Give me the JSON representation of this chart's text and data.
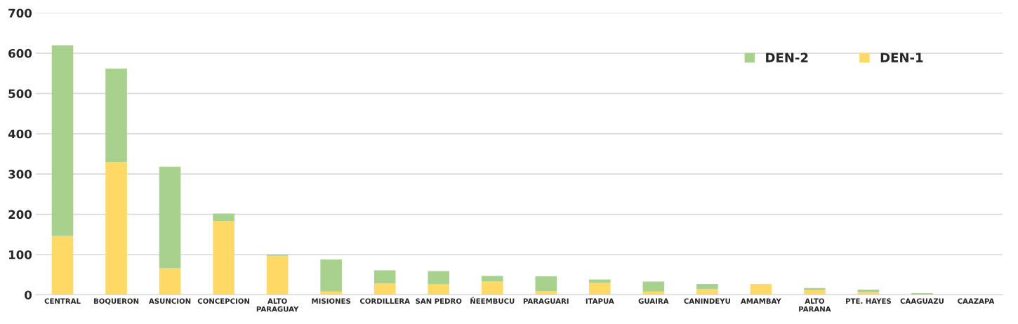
{
  "chart_data": {
    "type": "bar",
    "stacked": true,
    "categories": [
      "CENTRAL",
      "BOQUERON",
      "ASUNCION",
      "CONCEPCION",
      "ALTO\nPARAGUAY",
      "MISIONES",
      "CORDILLERA",
      "SAN PEDRO",
      "ÑEEMBUCU",
      "PARAGUARI",
      "ITAPUA",
      "GUAIRA",
      "CANINDEYU",
      "AMAMBAY",
      "ALTO\nPARANA",
      "PTE. HAYES",
      "CAAGUAZU",
      "CAAZAPA"
    ],
    "series": [
      {
        "name": "DEN-1",
        "color": "#ffd966",
        "values": [
          146,
          330,
          66,
          183,
          97,
          8,
          28,
          26,
          33,
          9,
          30,
          8,
          14,
          27,
          12,
          7,
          0,
          0
        ]
      },
      {
        "name": "DEN-2",
        "color": "#a9d18e",
        "values": [
          474,
          232,
          252,
          19,
          3,
          80,
          33,
          33,
          14,
          37,
          8,
          25,
          13,
          0,
          5,
          6,
          4,
          0
        ]
      }
    ],
    "ylim": [
      0,
      700
    ],
    "yticks": [
      0,
      100,
      200,
      300,
      400,
      500,
      600,
      700
    ],
    "grid": "y",
    "legend": "top right"
  }
}
